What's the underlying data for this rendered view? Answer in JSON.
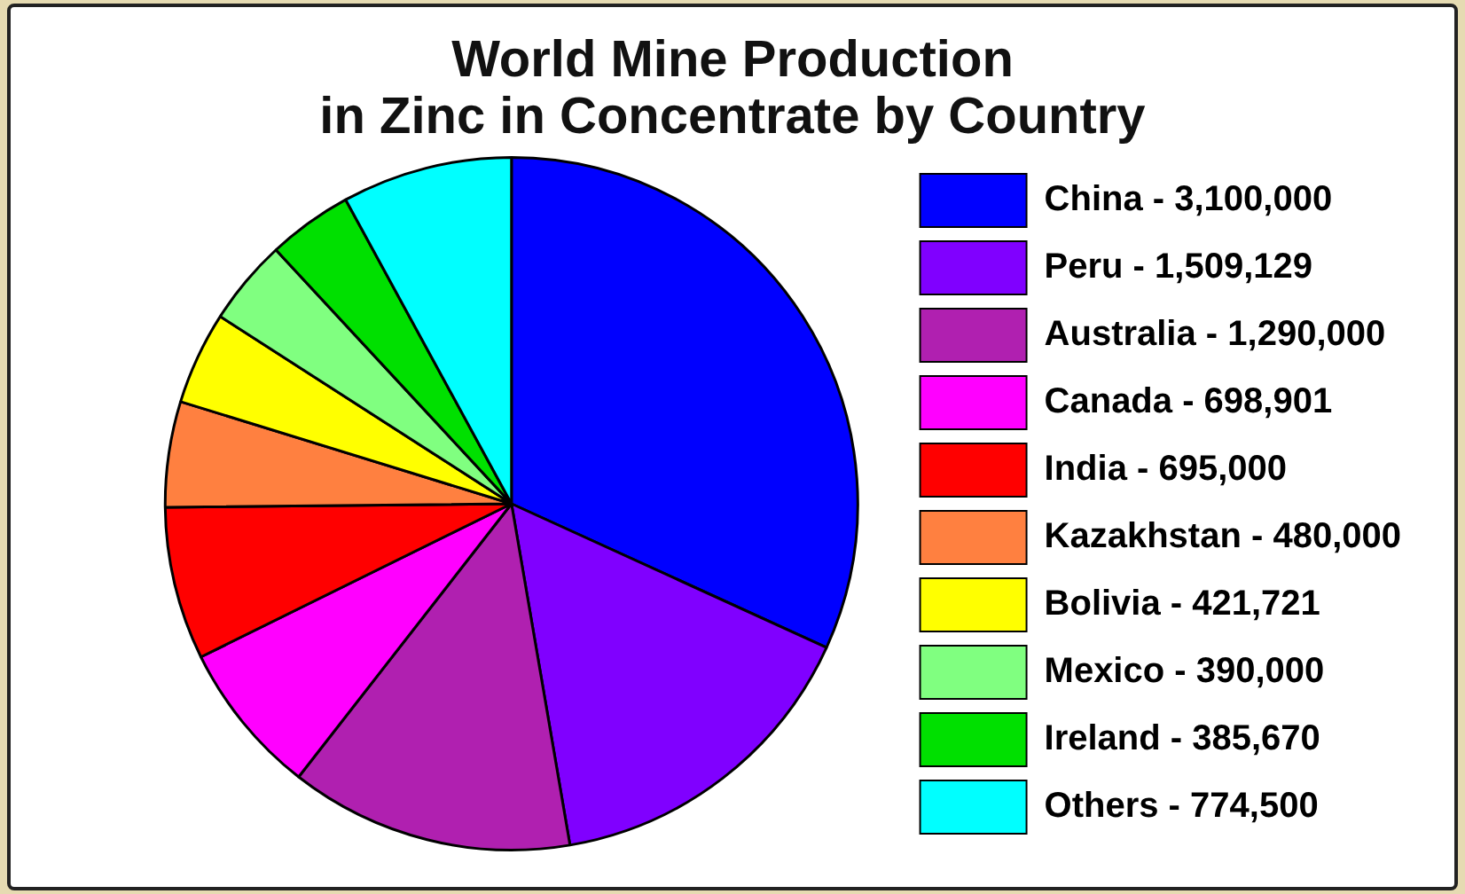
{
  "chart_data": {
    "type": "pie",
    "title": "World Mine Production\nin Zinc in Concentrate by Country",
    "categories": [
      "China",
      "Peru",
      "Australia",
      "Canada",
      "India",
      "Kazakhstan",
      "Bolivia",
      "Mexico",
      "Ireland",
      "Others"
    ],
    "value_labels": [
      "3,100,000",
      "1,509,129",
      "1,290,000",
      "698,901",
      "695,000",
      "480,000",
      "421,721",
      "390,000",
      "385,670",
      "774,500"
    ],
    "values": [
      3100000,
      1509129,
      1290000,
      698901,
      695000,
      480000,
      421721,
      390000,
      385670,
      774500
    ],
    "colors": [
      "#0000ff",
      "#8000ff",
      "#b020b0",
      "#ff00ff",
      "#ff0000",
      "#ff8040",
      "#ffff00",
      "#80ff80",
      "#00e000",
      "#00ffff"
    ],
    "legend": "right"
  }
}
